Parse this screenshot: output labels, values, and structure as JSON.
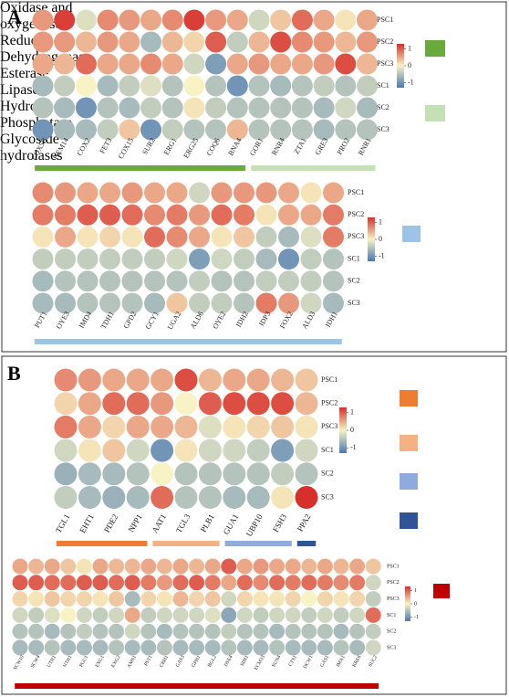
{
  "panel_labels": [
    "A",
    "B"
  ],
  "chart_data": [
    {
      "type": "dot-heatmap",
      "categories": [
        "COX5B",
        "HEM14",
        "COX2",
        "FET3",
        "COX15",
        "SUR2",
        "ERG1",
        "ERG25",
        "COQ6",
        "BNA4",
        "GOR1",
        "RNR4",
        "ZTA1",
        "GRE3",
        "PRO2",
        "RNR1"
      ],
      "rows": [
        "PSC1",
        "PSC2",
        "PSC3",
        "SC1",
        "SC2",
        "SC3"
      ],
      "values": [
        [
          0.6,
          1.2,
          -0.2,
          0.7,
          0.6,
          0.5,
          0.7,
          1.2,
          0.6,
          0.5,
          -0.3,
          0.3,
          0.9,
          0.5,
          0.1,
          0.5
        ],
        [
          0.6,
          0.6,
          0.4,
          0.6,
          0.5,
          -0.6,
          0.4,
          0.2,
          1.0,
          -0.4,
          0.4,
          1.1,
          0.7,
          0.6,
          0.4,
          0.6
        ],
        [
          0.5,
          0.4,
          0.9,
          0.5,
          0.5,
          0.7,
          0.5,
          -0.3,
          -0.9,
          0.5,
          0.6,
          0.5,
          0.5,
          0.6,
          1.1,
          0.4
        ],
        [
          -0.6,
          -0.4,
          0.0,
          -0.6,
          -0.4,
          -0.2,
          -0.5,
          0.0,
          -0.5,
          -1.0,
          -0.5,
          -0.6,
          -0.5,
          -0.4,
          -0.5,
          -0.4
        ],
        [
          -0.5,
          -0.6,
          -1.0,
          -0.5,
          -0.6,
          -0.4,
          -0.5,
          0.1,
          -0.4,
          -0.5,
          -0.5,
          -0.5,
          -0.5,
          -0.6,
          -0.3,
          -0.6
        ],
        [
          -1.0,
          -0.6,
          -0.6,
          -0.4,
          0.3,
          -1.0,
          -0.4,
          -0.5,
          -0.5,
          0.4,
          -0.5,
          -0.5,
          -0.5,
          -0.6,
          -0.5,
          -0.5
        ]
      ],
      "clim": [
        -1.3,
        1.3
      ],
      "cticks": [
        1,
        0,
        -1
      ],
      "colors": [
        "#4a78b2",
        "#f7f3c4",
        "#d7302a"
      ],
      "groups": [
        {
          "name": "Oxidase and oxygenase",
          "color": "#6aa93b",
          "count": 10
        },
        {
          "name": "Reductase",
          "color": "#c5e0b4",
          "count": 6
        }
      ]
    },
    {
      "type": "dot-heatmap",
      "categories": [
        "PUT1",
        "OYE3",
        "IMD4",
        "TDH1",
        "GPD2",
        "GCY1",
        "UGA2",
        "ALD6",
        "OYE2",
        "IDH2",
        "IDP3",
        "FOX2",
        "ALD3",
        "IDH1"
      ],
      "rows": [
        "PSC1",
        "PSC2",
        "PSC3",
        "SC1",
        "SC2",
        "SC3"
      ],
      "values": [
        [
          0.7,
          0.6,
          0.5,
          0.5,
          0.6,
          0.5,
          0.5,
          -0.3,
          0.6,
          0.6,
          0.6,
          0.5,
          0.1,
          0.5
        ],
        [
          0.8,
          0.8,
          1.0,
          1.0,
          0.9,
          0.7,
          0.8,
          0.6,
          0.9,
          0.8,
          0.1,
          0.5,
          0.5,
          0.8
        ],
        [
          0.1,
          0.5,
          0.1,
          0.2,
          0.1,
          0.9,
          0.7,
          0.5,
          0.1,
          0.3,
          -0.4,
          -0.6,
          -0.2,
          0.8
        ],
        [
          -0.4,
          -0.4,
          -0.4,
          -0.4,
          -0.4,
          -0.4,
          -0.3,
          -0.9,
          -0.3,
          -0.4,
          -0.6,
          -1.0,
          -0.4,
          -0.5
        ],
        [
          -0.6,
          -0.5,
          -0.5,
          -0.5,
          -0.5,
          -0.5,
          -0.5,
          -0.4,
          -0.5,
          -0.5,
          -0.4,
          -0.4,
          -0.4,
          -0.5
        ],
        [
          -0.6,
          -0.6,
          -0.5,
          -0.5,
          -0.5,
          -0.6,
          0.3,
          -0.4,
          -0.4,
          -0.5,
          0.8,
          0.6,
          -0.3,
          -0.6
        ]
      ],
      "clim": [
        -1.3,
        1.3
      ],
      "cticks": [
        1,
        0,
        -1
      ],
      "colors": [
        "#4a78b2",
        "#f7f3c4",
        "#d7302a"
      ],
      "groups": [
        {
          "name": "Dehydrogenase",
          "color": "#9dc3e6",
          "count": 14
        }
      ]
    },
    {
      "type": "dot-heatmap",
      "categories": [
        "TGL1",
        "EHT1",
        "PDE2",
        "NPP1",
        "AAT1",
        "TGL3",
        "PLB1",
        "GUA1",
        "UBP10",
        "FSH3",
        "PPA2"
      ],
      "rows": [
        "PSC1",
        "PSC2",
        "PSC3",
        "SC1",
        "SC2",
        "SC3"
      ],
      "values": [
        [
          0.7,
          0.6,
          0.5,
          0.5,
          0.5,
          1.1,
          0.4,
          0.5,
          0.5,
          0.4,
          0.3
        ],
        [
          0.2,
          0.5,
          0.9,
          0.9,
          0.6,
          0.0,
          1.0,
          1.1,
          1.1,
          1.1,
          0.4
        ],
        [
          0.8,
          0.5,
          0.2,
          0.5,
          0.5,
          0.4,
          -0.2,
          0.1,
          0.2,
          0.3,
          0.1
        ],
        [
          -0.3,
          0.1,
          0.3,
          -0.3,
          -1.0,
          0.1,
          -0.3,
          -0.3,
          -0.4,
          -0.9,
          -0.3
        ],
        [
          -0.7,
          -0.6,
          -0.6,
          -0.5,
          0.0,
          -0.5,
          -0.5,
          -0.5,
          -0.5,
          -0.4,
          -0.5
        ],
        [
          -0.4,
          -0.6,
          -0.7,
          -0.6,
          0.9,
          -0.5,
          -0.5,
          -0.6,
          -0.6,
          0.1,
          1.3
        ]
      ],
      "clim": [
        -1.3,
        1.3
      ],
      "cticks": [
        1,
        0,
        -1
      ],
      "colors": [
        "#4a78b2",
        "#f7f3c4",
        "#d7302a"
      ],
      "groups": [
        {
          "name": "Esterase",
          "color": "#ed7d31",
          "count": 4
        },
        {
          "name": "Lipase",
          "color": "#f4b183",
          "count": 3
        },
        {
          "name": "Hydrolase",
          "color": "#8faadc",
          "count": 3
        },
        {
          "name": "Phosphatase",
          "color": "#2f5597",
          "count": 1
        }
      ]
    },
    {
      "type": "dot-heatmap",
      "categories": [
        "SCW10",
        "SCW4",
        "UTH1",
        "NTH1",
        "PGU1",
        "EXG1",
        "EXG2",
        "AMS1",
        "PST1",
        "CRH1",
        "GAS3",
        "GPH1",
        "BGL2",
        "DSE4",
        "SIM1",
        "ECM33",
        "SUN4",
        "CTS1",
        "DCW1",
        "GAS1",
        "IMA1",
        "KRE6",
        "SUC2"
      ],
      "rows": [
        "PSC1",
        "PSC2",
        "PSC3",
        "SC1",
        "SC2",
        "SC3"
      ],
      "values": [
        [
          0.5,
          0.4,
          0.5,
          0.3,
          0.1,
          0.5,
          0.4,
          0.4,
          0.5,
          0.4,
          0.5,
          0.4,
          0.5,
          1.0,
          0.5,
          0.6,
          0.5,
          0.5,
          0.4,
          0.5,
          0.4,
          0.5,
          0.3
        ],
        [
          1.0,
          1.0,
          0.9,
          0.9,
          1.0,
          1.0,
          0.9,
          1.0,
          0.8,
          0.6,
          0.9,
          1.0,
          0.8,
          0.5,
          0.9,
          0.7,
          0.9,
          0.8,
          0.9,
          0.8,
          0.7,
          0.8,
          -0.3
        ],
        [
          0.2,
          0.1,
          0.3,
          0.2,
          0.2,
          0.1,
          0.3,
          -0.6,
          0.2,
          0.1,
          0.4,
          0.2,
          0.3,
          -0.3,
          0.2,
          0.1,
          0.1,
          0.2,
          0.0,
          0.2,
          0.1,
          0.2,
          -0.4
        ],
        [
          -0.3,
          -0.4,
          -0.2,
          0.0,
          -0.3,
          -0.4,
          -0.3,
          0.5,
          -0.4,
          -0.3,
          -0.3,
          -0.3,
          -0.2,
          -0.8,
          -0.3,
          -0.4,
          -0.3,
          -0.3,
          -0.4,
          -0.3,
          -0.4,
          -0.3,
          0.9
        ],
        [
          -0.5,
          -0.5,
          -0.6,
          -0.5,
          -0.4,
          -0.5,
          -0.5,
          -0.3,
          -0.5,
          -0.6,
          -0.5,
          -0.5,
          -0.5,
          -0.4,
          -0.5,
          -0.5,
          -0.6,
          -0.5,
          -0.5,
          -0.5,
          -0.6,
          -0.5,
          -0.4
        ],
        [
          -0.6,
          -0.6,
          -0.5,
          -0.6,
          -0.6,
          -0.6,
          -0.5,
          -0.6,
          -0.6,
          -0.5,
          -0.6,
          -0.6,
          -0.6,
          -0.5,
          -0.6,
          -0.6,
          -0.5,
          -0.6,
          -0.6,
          -0.6,
          -0.5,
          -0.6,
          -0.3
        ]
      ],
      "clim": [
        -1.3,
        1.3
      ],
      "cticks": [
        1,
        0,
        -1
      ],
      "colors": [
        "#4a78b2",
        "#f7f3c4",
        "#d7302a"
      ],
      "groups": [
        {
          "name": "Glycoside hydrolases",
          "color": "#c00000",
          "count": 23
        }
      ]
    }
  ]
}
